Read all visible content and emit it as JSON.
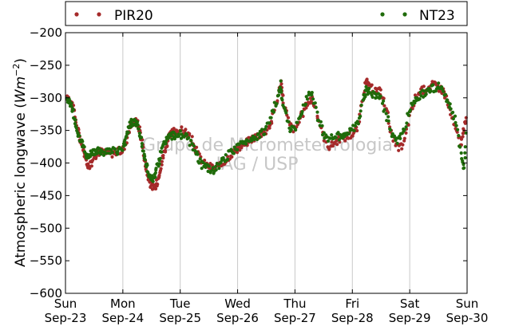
{
  "chart_data": {
    "type": "scatter",
    "ylabel_text": "Atmospheric longwave (",
    "ylabel_math": "Wm",
    "ylabel_exp": "−2",
    "ylabel_close": ")",
    "ylim": [
      -600,
      -200
    ],
    "yticks": [
      -200,
      -250,
      -300,
      -350,
      -400,
      -450,
      -500,
      -550,
      -600
    ],
    "xlim": [
      0,
      7
    ],
    "xticks": [
      {
        "day": "Sun",
        "date": "Sep-23"
      },
      {
        "day": "Mon",
        "date": "Sep-24"
      },
      {
        "day": "Tue",
        "date": "Sep-25"
      },
      {
        "day": "Wed",
        "date": "Sep-26"
      },
      {
        "day": "Thu",
        "date": "Sep-27"
      },
      {
        "day": "Fri",
        "date": "Sep-28"
      },
      {
        "day": "Sat",
        "date": "Sep-29"
      },
      {
        "day": "Sun",
        "date": "Sep-30"
      }
    ],
    "grid": "vertical",
    "legend_placement": "top",
    "watermark": [
      "Grupo de Micrometeorologia",
      "IAG / USP"
    ],
    "series": [
      {
        "name": "PIR20",
        "color": "#a52a2a",
        "points": [
          [
            0.0,
            -300
          ],
          [
            0.05,
            -298
          ],
          [
            0.1,
            -305
          ],
          [
            0.15,
            -320
          ],
          [
            0.2,
            -345
          ],
          [
            0.25,
            -362
          ],
          [
            0.3,
            -375
          ],
          [
            0.35,
            -395
          ],
          [
            0.4,
            -405
          ],
          [
            0.45,
            -400
          ],
          [
            0.5,
            -390
          ],
          [
            0.55,
            -385
          ],
          [
            0.6,
            -382
          ],
          [
            0.7,
            -384
          ],
          [
            0.8,
            -385
          ],
          [
            0.9,
            -383
          ],
          [
            1.0,
            -380
          ],
          [
            1.05,
            -370
          ],
          [
            1.1,
            -350
          ],
          [
            1.15,
            -340
          ],
          [
            1.2,
            -335
          ],
          [
            1.25,
            -338
          ],
          [
            1.3,
            -350
          ],
          [
            1.35,
            -375
          ],
          [
            1.4,
            -405
          ],
          [
            1.45,
            -425
          ],
          [
            1.5,
            -435
          ],
          [
            1.55,
            -440
          ],
          [
            1.6,
            -430
          ],
          [
            1.65,
            -410
          ],
          [
            1.7,
            -390
          ],
          [
            1.75,
            -375
          ],
          [
            1.8,
            -362
          ],
          [
            1.85,
            -355
          ],
          [
            1.9,
            -350
          ],
          [
            2.0,
            -350
          ],
          [
            2.1,
            -352
          ],
          [
            2.2,
            -365
          ],
          [
            2.3,
            -385
          ],
          [
            2.4,
            -400
          ],
          [
            2.5,
            -405
          ],
          [
            2.6,
            -408
          ],
          [
            2.7,
            -405
          ],
          [
            2.8,
            -395
          ],
          [
            2.9,
            -385
          ],
          [
            3.0,
            -378
          ],
          [
            3.1,
            -372
          ],
          [
            3.2,
            -365
          ],
          [
            3.3,
            -360
          ],
          [
            3.4,
            -355
          ],
          [
            3.5,
            -350
          ],
          [
            3.6,
            -335
          ],
          [
            3.7,
            -300
          ],
          [
            3.75,
            -275
          ],
          [
            3.8,
            -305
          ],
          [
            3.9,
            -340
          ],
          [
            4.0,
            -350
          ],
          [
            4.1,
            -330
          ],
          [
            4.2,
            -310
          ],
          [
            4.3,
            -300
          ],
          [
            4.4,
            -330
          ],
          [
            4.5,
            -360
          ],
          [
            4.6,
            -375
          ],
          [
            4.7,
            -368
          ],
          [
            4.8,
            -362
          ],
          [
            4.9,
            -360
          ],
          [
            5.0,
            -355
          ],
          [
            5.1,
            -345
          ],
          [
            5.2,
            -290
          ],
          [
            5.25,
            -275
          ],
          [
            5.3,
            -285
          ],
          [
            5.4,
            -288
          ],
          [
            5.5,
            -290
          ],
          [
            5.6,
            -320
          ],
          [
            5.7,
            -360
          ],
          [
            5.8,
            -380
          ],
          [
            5.9,
            -370
          ],
          [
            6.0,
            -330
          ],
          [
            6.1,
            -300
          ],
          [
            6.2,
            -290
          ],
          [
            6.3,
            -285
          ],
          [
            6.4,
            -280
          ],
          [
            6.5,
            -283
          ],
          [
            6.6,
            -290
          ],
          [
            6.7,
            -320
          ],
          [
            6.8,
            -350
          ],
          [
            6.9,
            -370
          ],
          [
            6.95,
            -345
          ],
          [
            7.0,
            -330
          ]
        ]
      },
      {
        "name": "NT23",
        "color": "#1f6b0a",
        "points": [
          [
            0.0,
            -305
          ],
          [
            0.05,
            -303
          ],
          [
            0.1,
            -310
          ],
          [
            0.15,
            -328
          ],
          [
            0.2,
            -350
          ],
          [
            0.25,
            -362
          ],
          [
            0.3,
            -372
          ],
          [
            0.35,
            -385
          ],
          [
            0.4,
            -390
          ],
          [
            0.45,
            -385
          ],
          [
            0.5,
            -382
          ],
          [
            0.55,
            -380
          ],
          [
            0.6,
            -382
          ],
          [
            0.7,
            -383
          ],
          [
            0.8,
            -382
          ],
          [
            0.9,
            -382
          ],
          [
            1.0,
            -378
          ],
          [
            1.05,
            -365
          ],
          [
            1.1,
            -345
          ],
          [
            1.15,
            -338
          ],
          [
            1.2,
            -336
          ],
          [
            1.25,
            -340
          ],
          [
            1.3,
            -355
          ],
          [
            1.35,
            -378
          ],
          [
            1.4,
            -400
          ],
          [
            1.45,
            -415
          ],
          [
            1.5,
            -425
          ],
          [
            1.55,
            -420
          ],
          [
            1.6,
            -405
          ],
          [
            1.65,
            -390
          ],
          [
            1.7,
            -375
          ],
          [
            1.75,
            -365
          ],
          [
            1.8,
            -360
          ],
          [
            1.85,
            -358
          ],
          [
            1.9,
            -357
          ],
          [
            2.0,
            -356
          ],
          [
            2.1,
            -360
          ],
          [
            2.2,
            -372
          ],
          [
            2.3,
            -390
          ],
          [
            2.4,
            -405
          ],
          [
            2.5,
            -410
          ],
          [
            2.6,
            -410
          ],
          [
            2.7,
            -402
          ],
          [
            2.8,
            -392
          ],
          [
            2.9,
            -382
          ],
          [
            3.0,
            -375
          ],
          [
            3.1,
            -370
          ],
          [
            3.2,
            -364
          ],
          [
            3.3,
            -360
          ],
          [
            3.4,
            -355
          ],
          [
            3.5,
            -348
          ],
          [
            3.6,
            -325
          ],
          [
            3.7,
            -300
          ],
          [
            3.75,
            -280
          ],
          [
            3.8,
            -312
          ],
          [
            3.9,
            -345
          ],
          [
            4.0,
            -352
          ],
          [
            4.1,
            -325
          ],
          [
            4.2,
            -300
          ],
          [
            4.3,
            -290
          ],
          [
            4.4,
            -330
          ],
          [
            4.5,
            -355
          ],
          [
            4.6,
            -362
          ],
          [
            4.7,
            -360
          ],
          [
            4.8,
            -358
          ],
          [
            4.9,
            -355
          ],
          [
            5.0,
            -350
          ],
          [
            5.1,
            -340
          ],
          [
            5.2,
            -300
          ],
          [
            5.25,
            -285
          ],
          [
            5.3,
            -292
          ],
          [
            5.4,
            -295
          ],
          [
            5.5,
            -300
          ],
          [
            5.6,
            -330
          ],
          [
            5.7,
            -360
          ],
          [
            5.8,
            -365
          ],
          [
            5.9,
            -350
          ],
          [
            6.0,
            -320
          ],
          [
            6.1,
            -300
          ],
          [
            6.2,
            -295
          ],
          [
            6.3,
            -290
          ],
          [
            6.4,
            -285
          ],
          [
            6.5,
            -283
          ],
          [
            6.6,
            -295
          ],
          [
            6.7,
            -315
          ],
          [
            6.8,
            -335
          ],
          [
            6.9,
            -390
          ],
          [
            6.95,
            -410
          ],
          [
            7.0,
            -330
          ]
        ]
      }
    ]
  }
}
